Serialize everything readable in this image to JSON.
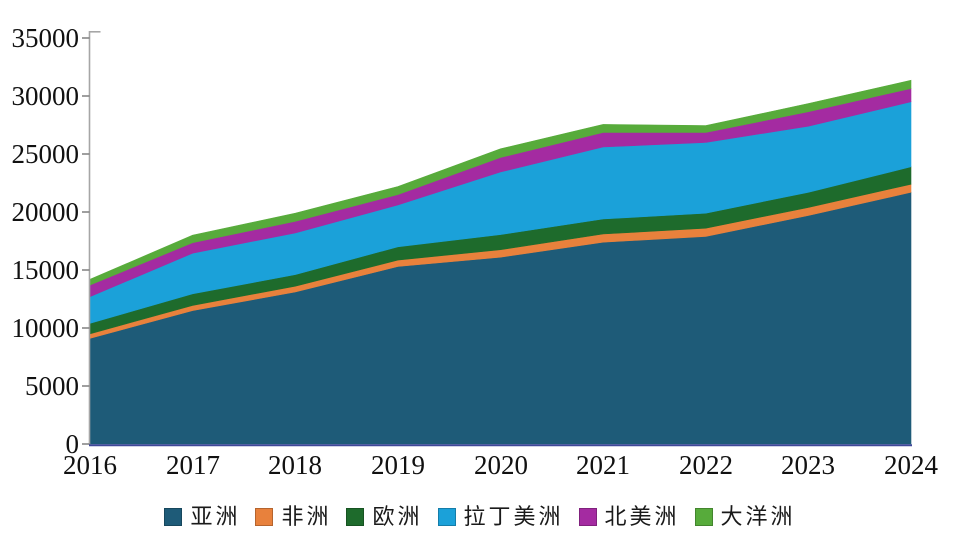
{
  "chart_data": {
    "type": "area",
    "stacked": true,
    "title": "",
    "xlabel": "",
    "ylabel": "",
    "grid": false,
    "legend_position": "bottom",
    "x": [
      2016,
      2017,
      2018,
      2019,
      2020,
      2021,
      2022,
      2023,
      2024
    ],
    "xticks": [
      "2016",
      "2017",
      "2018",
      "2019",
      "2020",
      "2021",
      "2022",
      "2023",
      "2024"
    ],
    "ylim": [
      0,
      35000
    ],
    "ytick_step": 5000,
    "yticks": [
      "0",
      "5000",
      "10000",
      "15000",
      "20000",
      "25000",
      "30000",
      "35000"
    ],
    "series": [
      {
        "name": "亚洲",
        "color": "#1E5B78",
        "values": [
          9100,
          11500,
          13100,
          15300,
          16100,
          17400,
          17900,
          19700,
          21700
        ]
      },
      {
        "name": "非洲",
        "color": "#E8813C",
        "values": [
          400,
          450,
          500,
          550,
          650,
          700,
          700,
          700,
          700
        ]
      },
      {
        "name": "欧洲",
        "color": "#1E6B2C",
        "values": [
          900,
          1000,
          1000,
          1150,
          1300,
          1300,
          1300,
          1300,
          1500
        ]
      },
      {
        "name": "拉丁美洲",
        "color": "#1BA1D9",
        "values": [
          2300,
          3500,
          3600,
          3600,
          5400,
          6200,
          6100,
          5700,
          5600
        ]
      },
      {
        "name": "北美洲",
        "color": "#A42BA1",
        "values": [
          1000,
          900,
          1000,
          900,
          1250,
          1250,
          850,
          1250,
          1150
        ]
      },
      {
        "name": "大洋洲",
        "color": "#57AB3B",
        "values": [
          500,
          650,
          700,
          700,
          750,
          700,
          600,
          700,
          700
        ]
      }
    ],
    "totals": [
      14200,
      18000,
      19900,
      22200,
      25450,
      27550,
      27450,
      29350,
      31350
    ]
  },
  "axis_style": {
    "y_axis_line_color": "#A6A6A6",
    "tick_color": "#7F7F7F",
    "x_axis_line_color": "#3F4899",
    "label_color": "#111111"
  }
}
